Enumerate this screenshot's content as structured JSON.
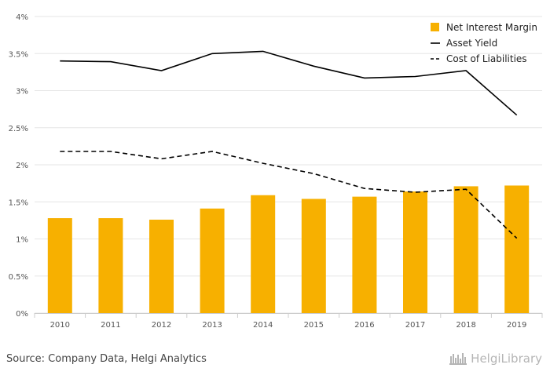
{
  "chart_data": {
    "type": "bar",
    "categories": [
      "2010",
      "2011",
      "2012",
      "2013",
      "2014",
      "2015",
      "2016",
      "2017",
      "2018",
      "2019"
    ],
    "series": [
      {
        "name": "Net Interest Margin",
        "kind": "bar",
        "color": "#f7b000",
        "values": [
          1.28,
          1.28,
          1.26,
          1.41,
          1.59,
          1.54,
          1.57,
          1.64,
          1.71,
          1.72
        ]
      },
      {
        "name": "Asset Yield",
        "kind": "line",
        "style": "solid",
        "color": "#000000",
        "values": [
          3.4,
          3.39,
          3.27,
          3.5,
          3.53,
          3.33,
          3.17,
          3.19,
          3.27,
          2.67
        ]
      },
      {
        "name": "Cost of Liabilities",
        "kind": "line",
        "style": "dashed",
        "color": "#000000",
        "values": [
          2.18,
          2.18,
          2.08,
          2.18,
          2.02,
          1.88,
          1.68,
          1.63,
          1.67,
          1.01
        ]
      }
    ],
    "y_ticks": [
      "0%",
      "0.5%",
      "1%",
      "1.5%",
      "2%",
      "2.5%",
      "3%",
      "3.5%",
      "4%"
    ],
    "ylim": [
      0,
      4
    ],
    "grid": true,
    "legend_position": "top-right"
  },
  "footer": {
    "source": "Source: Company Data, Helgi Analytics",
    "brand": "HelgiLibrary"
  }
}
